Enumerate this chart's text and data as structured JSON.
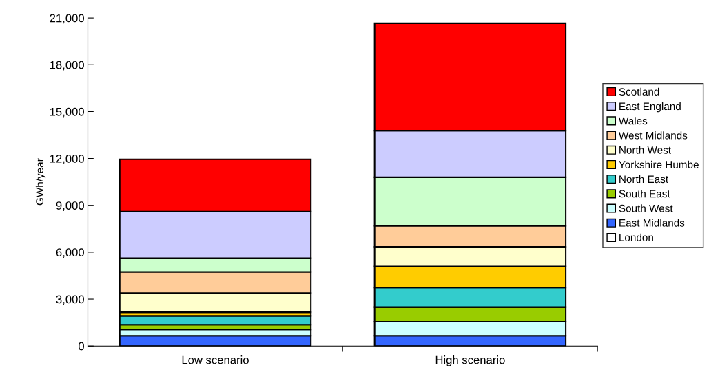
{
  "chart_data": {
    "type": "bar",
    "stacked": true,
    "ylabel": "GWh/year",
    "categories": [
      "Low scenario",
      "High scenario"
    ],
    "series": [
      {
        "name": "London",
        "color": "#ffffff",
        "values": [
          0,
          0
        ]
      },
      {
        "name": "East Midlands",
        "color": "#3366ff",
        "values": [
          660,
          660
        ]
      },
      {
        "name": "South West",
        "color": "#ccffff",
        "values": [
          400,
          890
        ]
      },
      {
        "name": "South East",
        "color": "#99cc00",
        "values": [
          300,
          940
        ]
      },
      {
        "name": "North East",
        "color": "#33cccc",
        "values": [
          570,
          1250
        ]
      },
      {
        "name": "Yorkshire Humbe",
        "color": "#ffcc00",
        "values": [
          230,
          1350
        ]
      },
      {
        "name": "North West",
        "color": "#ffffcc",
        "values": [
          1230,
          1260
        ]
      },
      {
        "name": "West Midlands",
        "color": "#ffcc99",
        "values": [
          1350,
          1340
        ]
      },
      {
        "name": "Wales",
        "color": "#ccffcc",
        "values": [
          880,
          3110
        ]
      },
      {
        "name": "East England",
        "color": "#ccccff",
        "values": [
          2980,
          2980
        ]
      },
      {
        "name": "Scotland",
        "color": "#ff0000",
        "values": [
          3350,
          6880
        ]
      }
    ],
    "ylim": [
      0,
      21000
    ],
    "yticks": [
      {
        "value": 0,
        "label": "0"
      },
      {
        "value": 3000,
        "label": "3,000"
      },
      {
        "value": 6000,
        "label": "6,000"
      },
      {
        "value": 9000,
        "label": "9,000"
      },
      {
        "value": 12000,
        "label": "12,000"
      },
      {
        "value": 15000,
        "label": "15,000"
      },
      {
        "value": 18000,
        "label": "18,000"
      },
      {
        "value": 21000,
        "label": "21,000"
      }
    ],
    "grid": false,
    "legend": "right"
  }
}
